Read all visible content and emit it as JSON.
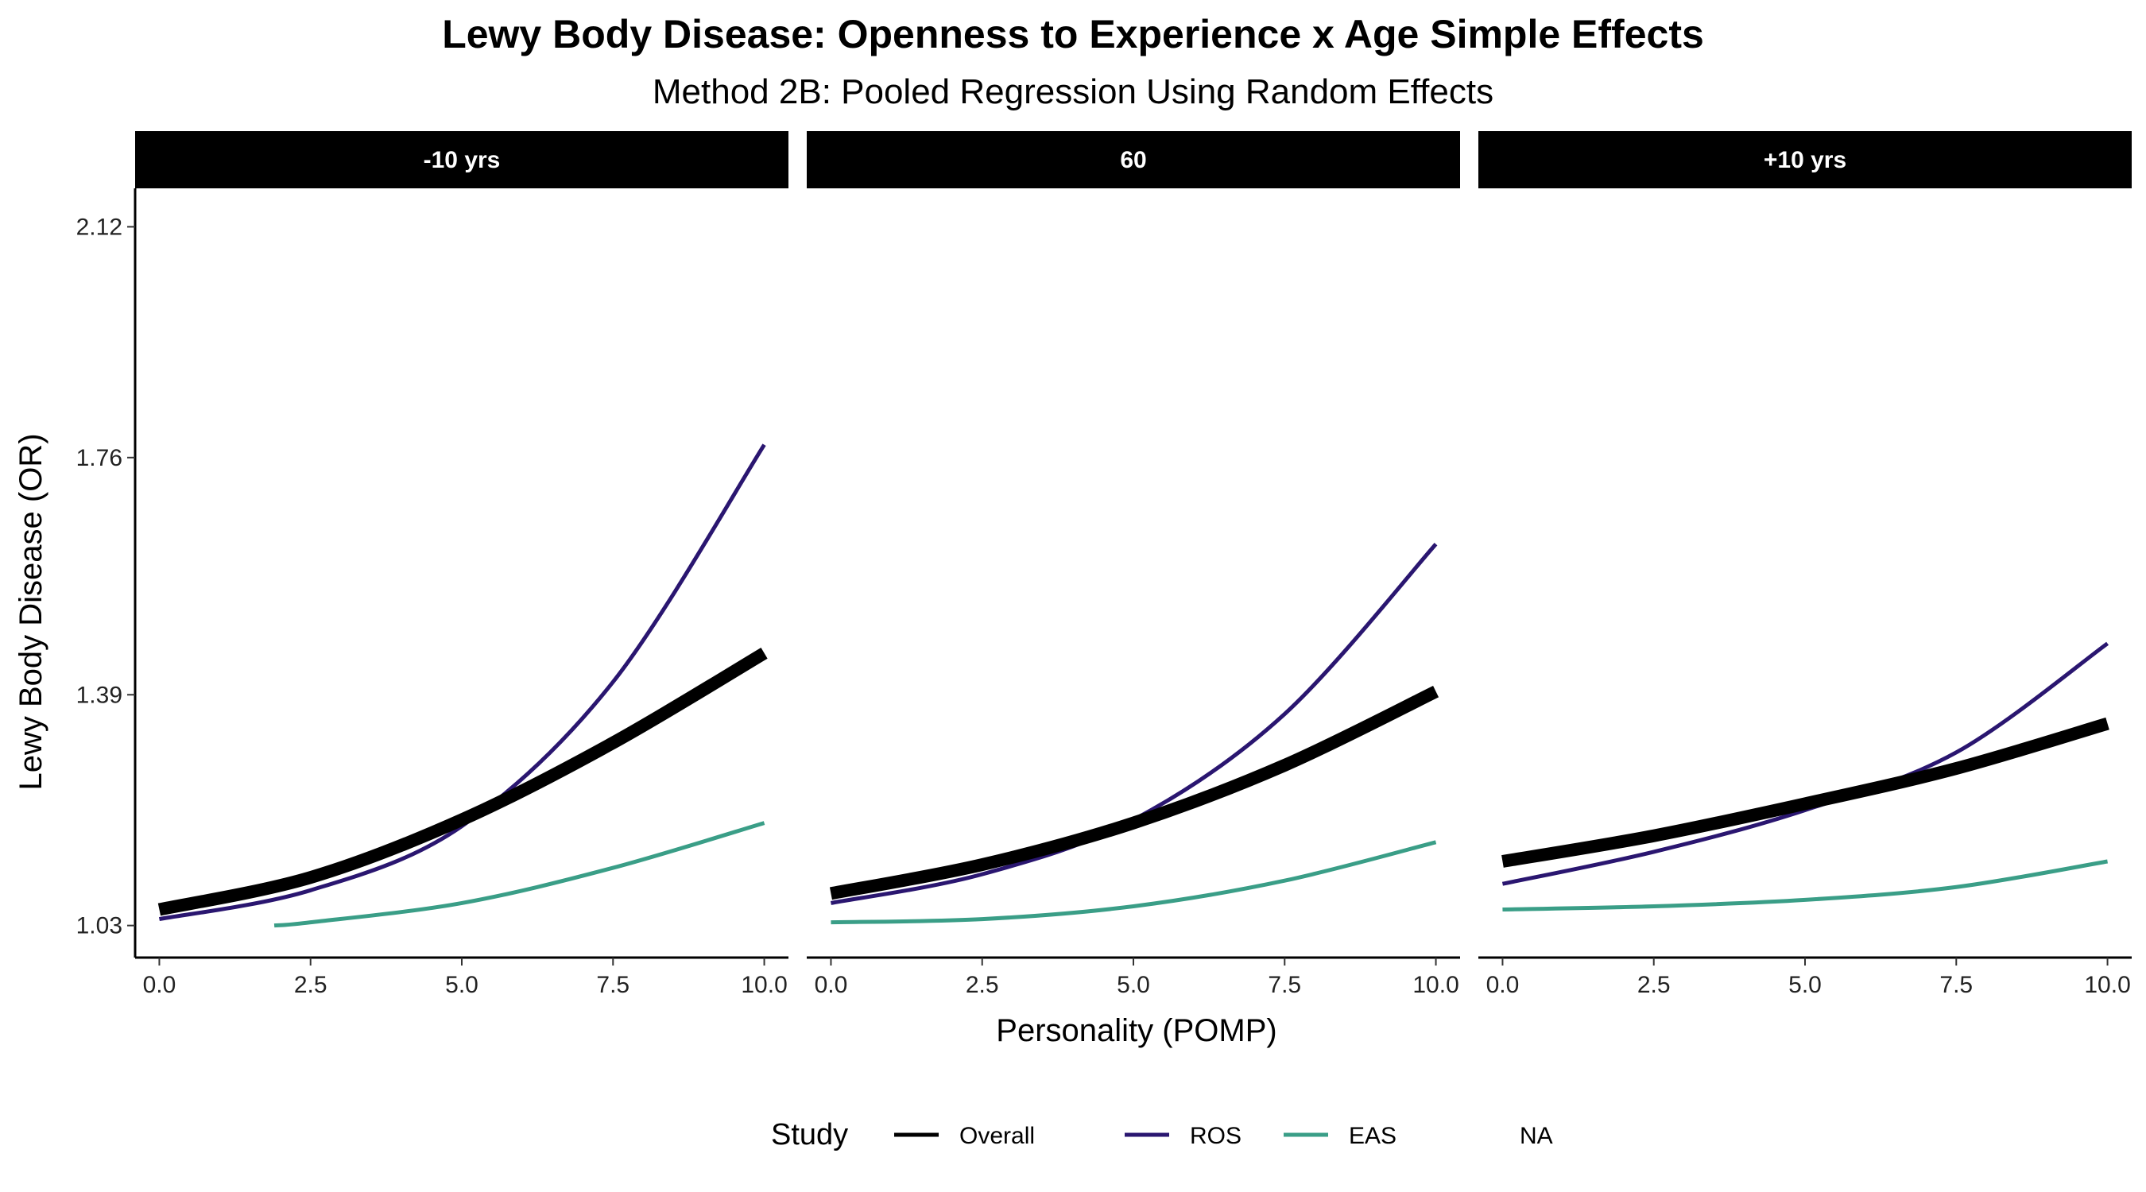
{
  "chart_data": {
    "type": "line",
    "title": "Lewy Body Disease: Openness to Experience x Age Simple Effects",
    "subtitle": "Method 2B: Pooled Regression Using Random Effects",
    "xlabel": "Personality (POMP)",
    "ylabel": "Lewy Body Disease (OR)",
    "xlim": [
      -0.4,
      10.4
    ],
    "ylim": [
      0.98,
      2.18
    ],
    "x_ticks": [
      "0.0",
      "2.5",
      "5.0",
      "7.5",
      "10.0"
    ],
    "y_ticks": [
      "1.03",
      "1.39",
      "1.76",
      "2.12"
    ],
    "legend": {
      "title": "Study",
      "position": "bottom",
      "items": [
        {
          "label": "Overall",
          "color": "#000000"
        },
        {
          "label": "ROS",
          "color": "#2a1670"
        },
        {
          "label": "EAS",
          "color": "#3a9e87"
        },
        {
          "label": "NA",
          "color": ""
        }
      ]
    },
    "panels": [
      {
        "label": "-10 yrs",
        "series": [
          {
            "name": "Overall",
            "color": "#000000",
            "x": [
              0,
              2.5,
              5,
              7.5,
              10
            ],
            "y": [
              1.055,
              1.105,
              1.195,
              1.315,
              1.455
            ]
          },
          {
            "name": "ROS",
            "color": "#2a1670",
            "x": [
              0,
              2.5,
              5,
              7.5,
              10
            ],
            "y": [
              1.04,
              1.085,
              1.185,
              1.41,
              1.78
            ]
          },
          {
            "name": "EAS",
            "color": "#3a9e87",
            "x": [
              1.9,
              2.5,
              5,
              7.5,
              10
            ],
            "y": [
              1.03,
              1.035,
              1.065,
              1.12,
              1.19
            ]
          }
        ]
      },
      {
        "label": "60",
        "series": [
          {
            "name": "Overall",
            "color": "#000000",
            "x": [
              0,
              2.5,
              5,
              7.5,
              10
            ],
            "y": [
              1.08,
              1.125,
              1.19,
              1.28,
              1.395
            ]
          },
          {
            "name": "ROS",
            "color": "#2a1670",
            "x": [
              0,
              2.5,
              5,
              7.5,
              10
            ],
            "y": [
              1.065,
              1.11,
              1.195,
              1.36,
              1.625
            ]
          },
          {
            "name": "EAS",
            "color": "#3a9e87",
            "x": [
              0,
              2.5,
              5,
              7.5,
              10
            ],
            "y": [
              1.035,
              1.04,
              1.06,
              1.1,
              1.16
            ]
          }
        ]
      },
      {
        "label": "+10 yrs",
        "series": [
          {
            "name": "Overall",
            "color": "#000000",
            "x": [
              0,
              2.5,
              5,
              7.5,
              10
            ],
            "y": [
              1.13,
              1.17,
              1.22,
              1.275,
              1.345
            ]
          },
          {
            "name": "ROS",
            "color": "#2a1670",
            "x": [
              0,
              2.5,
              5,
              7.5,
              10
            ],
            "y": [
              1.095,
              1.145,
              1.21,
              1.3,
              1.47
            ]
          },
          {
            "name": "EAS",
            "color": "#3a9e87",
            "x": [
              0,
              2.5,
              5,
              7.5,
              10
            ],
            "y": [
              1.055,
              1.06,
              1.07,
              1.09,
              1.13
            ]
          }
        ]
      }
    ]
  }
}
